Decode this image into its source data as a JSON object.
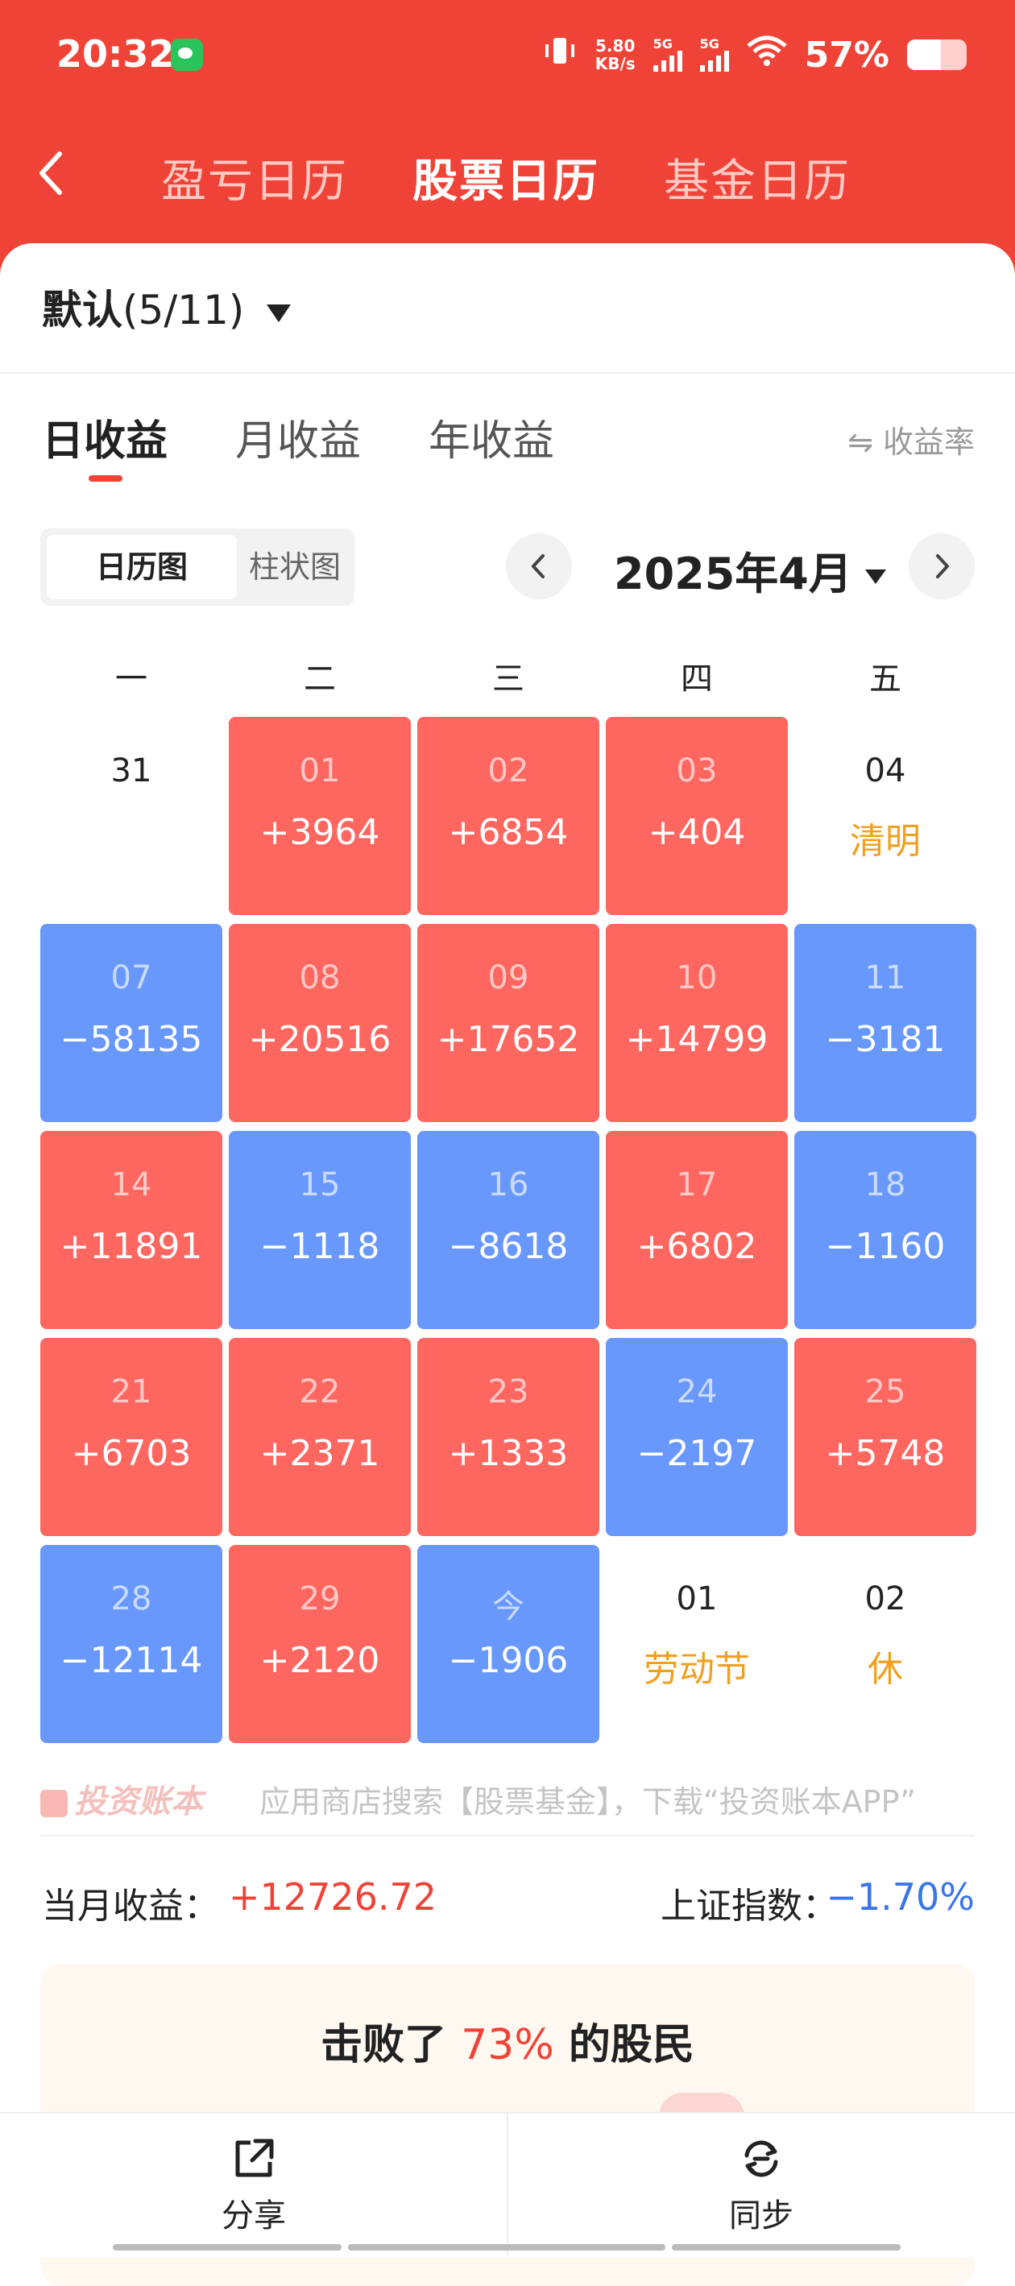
{
  "status_bar": {
    "time": "20:32",
    "net_speed_value": "5.80",
    "net_speed_unit": "KB/s",
    "signal1_label": "5G",
    "signal2_label": "5G",
    "battery": "57%",
    "battery_level": 0.57
  },
  "header": {
    "tabs": [
      "盈亏日历",
      "股票日历",
      "基金日历"
    ],
    "active_tab": "股票日历"
  },
  "account": {
    "name": "默认",
    "count": "(5/11)"
  },
  "period_tabs": [
    "日收益",
    "月收益",
    "年收益"
  ],
  "rate_toggle": "⇋ 收益率",
  "view_toggle": {
    "calendar": "日历图",
    "bar": "柱状图"
  },
  "month_title": "2025年4月",
  "weekdays": [
    "一",
    "二",
    "三",
    "四",
    "五"
  ],
  "calendar": [
    [
      {
        "day": "31",
        "value": "",
        "type": "plain"
      },
      {
        "day": "01",
        "value": "+3964",
        "type": "pos"
      },
      {
        "day": "02",
        "value": "+6854",
        "type": "pos"
      },
      {
        "day": "03",
        "value": "+404",
        "type": "pos"
      },
      {
        "day": "04",
        "value": "清明",
        "type": "plain"
      }
    ],
    [
      {
        "day": "07",
        "value": "−58135",
        "type": "neg"
      },
      {
        "day": "08",
        "value": "+20516",
        "type": "pos"
      },
      {
        "day": "09",
        "value": "+17652",
        "type": "pos"
      },
      {
        "day": "10",
        "value": "+14799",
        "type": "pos"
      },
      {
        "day": "11",
        "value": "−3181",
        "type": "neg"
      }
    ],
    [
      {
        "day": "14",
        "value": "+11891",
        "type": "pos"
      },
      {
        "day": "15",
        "value": "−1118",
        "type": "neg"
      },
      {
        "day": "16",
        "value": "−8618",
        "type": "neg"
      },
      {
        "day": "17",
        "value": "+6802",
        "type": "pos"
      },
      {
        "day": "18",
        "value": "−1160",
        "type": "neg"
      }
    ],
    [
      {
        "day": "21",
        "value": "+6703",
        "type": "pos"
      },
      {
        "day": "22",
        "value": "+2371",
        "type": "pos"
      },
      {
        "day": "23",
        "value": "+1333",
        "type": "pos"
      },
      {
        "day": "24",
        "value": "−2197",
        "type": "neg"
      },
      {
        "day": "25",
        "value": "+5748",
        "type": "pos"
      }
    ],
    [
      {
        "day": "28",
        "value": "−12114",
        "type": "neg"
      },
      {
        "day": "29",
        "value": "+2120",
        "type": "pos"
      },
      {
        "day": "今",
        "value": "−1906",
        "type": "neg"
      },
      {
        "day": "01",
        "value": "劳动节",
        "type": "plain"
      },
      {
        "day": "02",
        "value": "休",
        "type": "plain"
      }
    ]
  ],
  "watermark": {
    "logo": "投资账本",
    "text": "应用商店搜索【股票基金】，下载“投资账本APP”"
  },
  "summary": {
    "monthly_label": "当月收益：",
    "monthly_value": "+12726.72",
    "index_label": "上证指数：",
    "index_value": "−1.70%"
  },
  "beat": {
    "prefix": "击败了",
    "percent": "73%",
    "suffix": "的股民"
  },
  "bottom_bar": {
    "share": "分享",
    "sync": "同步"
  },
  "colors": {
    "brand_red": "#f04337",
    "gain": "#fe6660",
    "loss": "#6898fc",
    "holiday": "#f0a020"
  }
}
